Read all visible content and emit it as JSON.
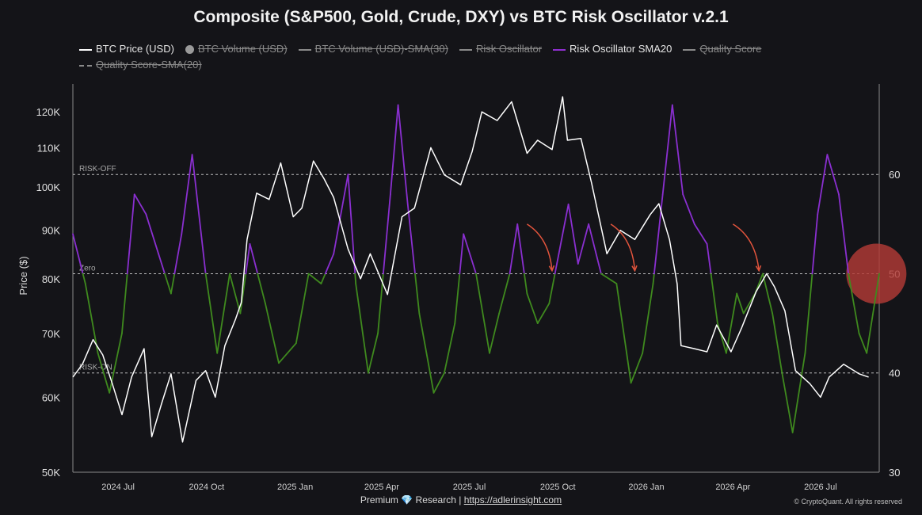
{
  "title": "Composite (S&P500, Gold, Crude, DXY) vs BTC Risk Oscillator v.2.1",
  "legend": [
    {
      "label": "BTC Price (USD)",
      "color": "#ffffff",
      "active": true,
      "style": "solid"
    },
    {
      "label": "BTC Volume (USD)",
      "color": "#9a9a9a",
      "active": false,
      "style": "dot"
    },
    {
      "label": "BTC Volume (USD)-SMA(30)",
      "color": "#8a8a8a",
      "active": false,
      "style": "solid"
    },
    {
      "label": "Risk Oscillator",
      "color": "#8a8a8a",
      "active": false,
      "style": "solid"
    },
    {
      "label": "Risk Oscillator SMA20",
      "color": "#8f2fd0",
      "active": true,
      "style": "solid"
    },
    {
      "label": "Quality Score",
      "color": "#8a8a8a",
      "active": false,
      "style": "solid"
    },
    {
      "label": "Quality Score-SMA(20)",
      "color": "#8a8a8a",
      "active": false,
      "style": "dashed"
    }
  ],
  "footer": {
    "prefix": "Premium",
    "gem": "💎",
    "middle": "Research |",
    "link": "https://adlerinsight.com"
  },
  "copyright": "© CryptoQuant. All rights reserved",
  "colors": {
    "price": "#ffffff",
    "osc_high": "#8a2fd0",
    "osc_low": "#3f8a1e",
    "arrow": "#e2543c",
    "highlight": "#b23a36"
  },
  "chart_data": {
    "type": "line",
    "title": "Composite (S&P500, Gold, Crude, DXY) vs BTC Risk Oscillator v.2.1",
    "ylabel": "Price ($)",
    "y_scale": "log",
    "ylim": [
      50000,
      125000
    ],
    "y_ticks": [
      50000,
      60000,
      70000,
      80000,
      90000,
      100000,
      110000,
      120000
    ],
    "y_tick_labels": [
      "50K",
      "60K",
      "70K",
      "80K",
      "90K",
      "100K",
      "110K",
      "120K"
    ],
    "y2lim": [
      30,
      68
    ],
    "y2_ticks": [
      30,
      40,
      50,
      60
    ],
    "x_range": [
      "2024-05-15",
      "2026-08-31"
    ],
    "x_ticks": [
      "2024-07-01",
      "2024-10-01",
      "2025-01-01",
      "2025-04-01",
      "2025-07-01",
      "2025-10-01",
      "2026-01-01",
      "2026-04-01",
      "2026-07-01"
    ],
    "x_tick_labels": [
      "2024 Jul",
      "2024 Oct",
      "2025 Jan",
      "2025 Apr",
      "2025 Jul",
      "2025 Oct",
      "2026 Jan",
      "2026 Apr",
      "2026 Jul"
    ],
    "reference_lines": [
      {
        "label": "RISK-OFF",
        "value": 60
      },
      {
        "label": "Zero",
        "value": 50
      },
      {
        "label": "RISK-ON",
        "value": 40
      }
    ],
    "threshold": 50,
    "grid": false,
    "series": [
      {
        "name": "BTC Price (USD)",
        "axis": "left",
        "points": [
          [
            "2024-05-15",
            63000
          ],
          [
            "2024-05-25",
            65000
          ],
          [
            "2024-06-05",
            69000
          ],
          [
            "2024-06-15",
            66500
          ],
          [
            "2024-06-25",
            62000
          ],
          [
            "2024-07-05",
            57500
          ],
          [
            "2024-07-15",
            63000
          ],
          [
            "2024-07-28",
            67500
          ],
          [
            "2024-08-05",
            54500
          ],
          [
            "2024-08-15",
            59000
          ],
          [
            "2024-08-25",
            63500
          ],
          [
            "2024-09-06",
            53800
          ],
          [
            "2024-09-20",
            62500
          ],
          [
            "2024-09-30",
            64000
          ],
          [
            "2024-10-10",
            60000
          ],
          [
            "2024-10-20",
            68000
          ],
          [
            "2024-10-31",
            72500
          ],
          [
            "2024-11-06",
            75500
          ],
          [
            "2024-11-12",
            88000
          ],
          [
            "2024-11-22",
            98500
          ],
          [
            "2024-12-05",
            97000
          ],
          [
            "2024-12-17",
            106000
          ],
          [
            "2024-12-30",
            93000
          ],
          [
            "2025-01-08",
            95000
          ],
          [
            "2025-01-20",
            106500
          ],
          [
            "2025-01-31",
            102000
          ],
          [
            "2025-02-10",
            97500
          ],
          [
            "2025-02-25",
            86000
          ],
          [
            "2025-03-10",
            80000
          ],
          [
            "2025-03-20",
            85000
          ],
          [
            "2025-04-07",
            77000
          ],
          [
            "2025-04-22",
            93000
          ],
          [
            "2025-05-05",
            95000
          ],
          [
            "2025-05-22",
            110000
          ],
          [
            "2025-06-05",
            103000
          ],
          [
            "2025-06-22",
            100500
          ],
          [
            "2025-07-04",
            109000
          ],
          [
            "2025-07-14",
            120000
          ],
          [
            "2025-07-30",
            117500
          ],
          [
            "2025-08-14",
            123000
          ],
          [
            "2025-08-30",
            108500
          ],
          [
            "2025-09-10",
            112000
          ],
          [
            "2025-09-25",
            109500
          ],
          [
            "2025-10-06",
            124500
          ],
          [
            "2025-10-11",
            112000
          ],
          [
            "2025-10-25",
            112500
          ],
          [
            "2025-11-05",
            101000
          ],
          [
            "2025-11-21",
            85000
          ],
          [
            "2025-12-05",
            90000
          ],
          [
            "2025-12-20",
            88000
          ],
          [
            "2026-01-05",
            93500
          ],
          [
            "2026-01-14",
            96000
          ],
          [
            "2026-01-25",
            88000
          ],
          [
            "2026-02-02",
            79000
          ],
          [
            "2026-02-06",
            68000
          ],
          [
            "2026-02-20",
            67500
          ],
          [
            "2026-03-05",
            67000
          ],
          [
            "2026-03-15",
            71500
          ],
          [
            "2026-03-30",
            67000
          ],
          [
            "2026-04-10",
            71000
          ],
          [
            "2026-04-25",
            77500
          ],
          [
            "2026-05-06",
            81000
          ],
          [
            "2026-05-14",
            78500
          ],
          [
            "2026-05-25",
            74000
          ],
          [
            "2026-06-05",
            64000
          ],
          [
            "2026-06-20",
            62000
          ],
          [
            "2026-07-01",
            60000
          ],
          [
            "2026-07-10",
            63000
          ],
          [
            "2026-07-25",
            65000
          ],
          [
            "2026-08-10",
            63500
          ],
          [
            "2026-08-20",
            63000
          ]
        ]
      },
      {
        "name": "Risk Oscillator SMA20",
        "axis": "right",
        "points": [
          [
            "2024-05-15",
            54
          ],
          [
            "2024-05-28",
            49
          ],
          [
            "2024-06-10",
            42
          ],
          [
            "2024-06-22",
            38
          ],
          [
            "2024-07-05",
            44
          ],
          [
            "2024-07-18",
            58
          ],
          [
            "2024-07-30",
            56
          ],
          [
            "2024-08-12",
            52
          ],
          [
            "2024-08-25",
            48
          ],
          [
            "2024-09-05",
            54
          ],
          [
            "2024-09-16",
            62
          ],
          [
            "2024-09-30",
            50
          ],
          [
            "2024-10-12",
            42
          ],
          [
            "2024-10-25",
            50
          ],
          [
            "2024-11-05",
            46
          ],
          [
            "2024-11-15",
            53
          ],
          [
            "2024-12-01",
            47
          ],
          [
            "2024-12-15",
            41
          ],
          [
            "2025-01-02",
            43
          ],
          [
            "2025-01-15",
            50
          ],
          [
            "2025-01-28",
            49
          ],
          [
            "2025-02-10",
            52
          ],
          [
            "2025-02-25",
            60
          ],
          [
            "2025-03-05",
            49
          ],
          [
            "2025-03-18",
            40
          ],
          [
            "2025-03-28",
            44
          ],
          [
            "2025-04-10",
            58
          ],
          [
            "2025-04-18",
            67
          ],
          [
            "2025-04-28",
            57
          ],
          [
            "2025-05-10",
            46
          ],
          [
            "2025-05-25",
            38
          ],
          [
            "2025-06-05",
            40
          ],
          [
            "2025-06-16",
            45
          ],
          [
            "2025-06-25",
            54
          ],
          [
            "2025-07-08",
            50
          ],
          [
            "2025-07-22",
            42
          ],
          [
            "2025-08-01",
            46
          ],
          [
            "2025-08-12",
            50
          ],
          [
            "2025-08-20",
            55
          ],
          [
            "2025-08-30",
            48
          ],
          [
            "2025-09-10",
            45
          ],
          [
            "2025-09-22",
            47
          ],
          [
            "2025-10-02",
            52
          ],
          [
            "2025-10-12",
            57
          ],
          [
            "2025-10-22",
            51
          ],
          [
            "2025-11-02",
            55
          ],
          [
            "2025-11-15",
            50
          ],
          [
            "2025-12-01",
            49
          ],
          [
            "2025-12-16",
            39
          ],
          [
            "2025-12-28",
            42
          ],
          [
            "2026-01-08",
            49
          ],
          [
            "2026-01-18",
            58
          ],
          [
            "2026-01-28",
            67
          ],
          [
            "2026-02-08",
            58
          ],
          [
            "2026-02-20",
            55
          ],
          [
            "2026-03-05",
            53
          ],
          [
            "2026-03-16",
            45
          ],
          [
            "2026-03-25",
            42
          ],
          [
            "2026-04-05",
            48
          ],
          [
            "2026-04-12",
            46
          ],
          [
            "2026-04-24",
            48
          ],
          [
            "2026-05-02",
            50
          ],
          [
            "2026-05-12",
            46
          ],
          [
            "2026-05-22",
            40
          ],
          [
            "2026-06-02",
            34
          ],
          [
            "2026-06-15",
            42
          ],
          [
            "2026-06-28",
            56
          ],
          [
            "2026-07-08",
            62
          ],
          [
            "2026-07-20",
            58
          ],
          [
            "2026-07-30",
            50
          ],
          [
            "2026-08-10",
            44
          ],
          [
            "2026-08-18",
            42
          ],
          [
            "2026-08-31",
            50
          ]
        ]
      }
    ],
    "annotations": [
      {
        "type": "arrow",
        "from": [
          "2025-08-30",
          55
        ],
        "to": [
          "2025-09-25",
          50.3
        ]
      },
      {
        "type": "arrow",
        "from": [
          "2025-11-25",
          55
        ],
        "to": [
          "2025-12-20",
          50.3
        ]
      },
      {
        "type": "arrow",
        "from": [
          "2026-04-01",
          55
        ],
        "to": [
          "2026-04-28",
          50.3
        ]
      },
      {
        "type": "highlight-circle",
        "at": [
          "2026-08-28",
          50
        ]
      }
    ]
  }
}
